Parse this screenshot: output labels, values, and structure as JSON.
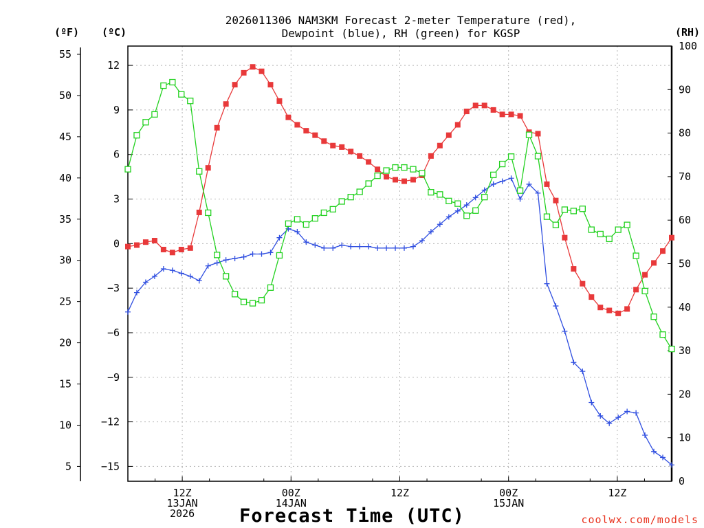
{
  "chart_data": {
    "type": "line",
    "title_line1": "2026011306 NAM3KM Forecast 2-meter Temperature (red),",
    "title_line2": "Dewpoint (blue), RH (green) for KGSP",
    "xlabel": "Forecast Time (UTC)",
    "credit": "coolwx.com/models",
    "x_hours_range": [
      0,
      60
    ],
    "x_ticks": [
      {
        "hour": 6,
        "lines": [
          "12Z",
          "13JAN",
          "2026"
        ]
      },
      {
        "hour": 18,
        "lines": [
          "00Z",
          "14JAN"
        ]
      },
      {
        "hour": 30,
        "lines": [
          "12Z"
        ]
      },
      {
        "hour": 42,
        "lines": [
          "00Z",
          "15JAN"
        ]
      },
      {
        "hour": 54,
        "lines": [
          "12Z"
        ]
      }
    ],
    "left_axis_f": {
      "unit_label": "(ºF)",
      "range": [
        3.2,
        56
      ],
      "ticks": [
        "5",
        "10",
        "15",
        "20",
        "25",
        "30",
        "35",
        "40",
        "45",
        "50",
        "55"
      ]
    },
    "left_axis_c": {
      "unit_label": "(ºC)",
      "range": [
        -16,
        13.3
      ],
      "ticks": [
        "-15",
        "-12",
        "-9",
        "-6",
        "-3",
        "0",
        "3",
        "6",
        "9",
        "12"
      ]
    },
    "right_axis_rh": {
      "unit_label": "(RH)",
      "range": [
        0,
        100
      ],
      "ticks": [
        "0",
        "10",
        "20",
        "30",
        "40",
        "50",
        "60",
        "70",
        "80",
        "90",
        "100"
      ]
    },
    "series": [
      {
        "name": "2-meter Temperature (C)",
        "color": "#e8393a",
        "marker": "filled-square",
        "values": [
          -0.2,
          -0.1,
          0.1,
          0.2,
          -0.4,
          -0.6,
          -0.4,
          -0.3,
          2.1,
          5.1,
          7.8,
          9.4,
          10.7,
          11.5,
          11.9,
          11.6,
          10.7,
          9.6,
          8.5,
          8.0,
          7.6,
          7.3,
          6.9,
          6.6,
          6.5,
          6.2,
          5.9,
          5.5,
          5.0,
          4.5,
          4.3,
          4.2,
          4.3,
          4.6,
          5.9,
          6.6,
          7.3,
          8.0,
          8.9,
          9.3,
          9.3,
          9.0,
          8.7,
          8.7,
          8.6,
          7.5,
          7.4,
          4.0,
          2.9,
          0.4,
          -1.7,
          -2.7,
          -3.6,
          -4.3,
          -4.5,
          -4.7,
          -4.4,
          -3.1,
          -2.1,
          -1.3,
          -0.5,
          0.4
        ]
      },
      {
        "name": "Dewpoint (C)",
        "color": "#2f4ee0",
        "marker": "plus",
        "values": [
          -4.6,
          -3.3,
          -2.6,
          -2.2,
          -1.7,
          -1.8,
          -2.0,
          -2.2,
          -2.5,
          -1.5,
          -1.3,
          -1.1,
          -1.0,
          -0.9,
          -0.7,
          -0.7,
          -0.6,
          0.4,
          1.0,
          0.8,
          0.1,
          -0.1,
          -0.3,
          -0.3,
          -0.1,
          -0.2,
          -0.2,
          -0.2,
          -0.3,
          -0.3,
          -0.3,
          -0.3,
          -0.2,
          0.2,
          0.8,
          1.3,
          1.8,
          2.2,
          2.6,
          3.1,
          3.6,
          4.0,
          4.2,
          4.4,
          3.0,
          4.0,
          3.4,
          -2.7,
          -4.2,
          -5.9,
          -8.0,
          -8.6,
          -10.7,
          -11.6,
          -12.1,
          -11.7,
          -11.3,
          -11.4,
          -12.9,
          -14.0,
          -14.4,
          -14.9
        ]
      },
      {
        "name": "Relative Humidity (%)",
        "color": "#22d11f",
        "marker": "open-square",
        "values": [
          71.7,
          79.5,
          82.5,
          84.3,
          90.9,
          91.7,
          88.9,
          87.4,
          71.2,
          61.7,
          52.0,
          47.1,
          43.0,
          41.2,
          40.9,
          41.6,
          44.5,
          51.9,
          59.2,
          60.2,
          59.0,
          60.4,
          61.7,
          62.5,
          64.3,
          65.3,
          66.5,
          68.4,
          70.2,
          71.4,
          72.1,
          72.1,
          71.7,
          70.8,
          66.4,
          65.9,
          64.4,
          63.8,
          61.0,
          62.2,
          65.3,
          70.4,
          72.9,
          74.6,
          66.8,
          79.6,
          74.7,
          60.8,
          58.9,
          62.4,
          62.1,
          62.6,
          57.8,
          56.8,
          55.7,
          57.8,
          58.9,
          51.8,
          43.7,
          37.8,
          33.7,
          30.4
        ]
      }
    ]
  }
}
